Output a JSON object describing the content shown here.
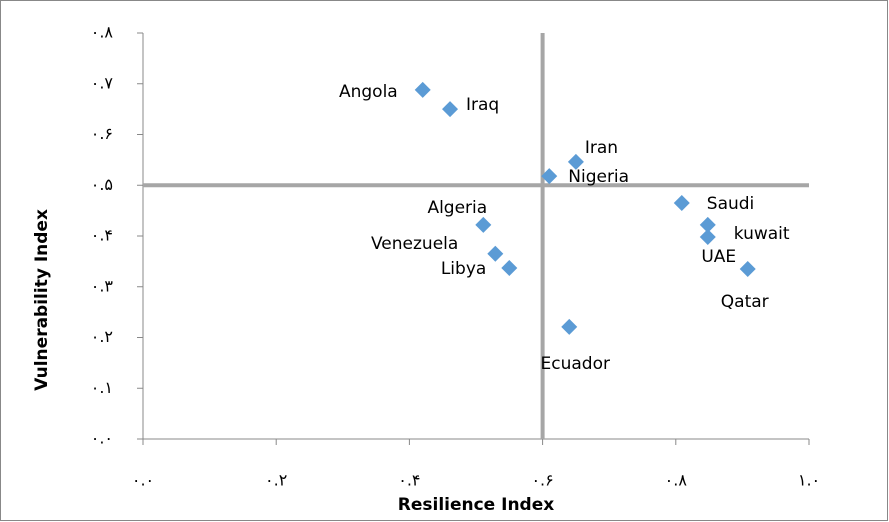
{
  "chart_data": {
    "type": "scatter",
    "x_label": "Resilience Index",
    "y_label": "Vulnerability Index",
    "points": [
      "Angola",
      "Iraq",
      "Iran",
      "Nigeria",
      "Saudi",
      "kuwait",
      "UAE",
      "Qatar",
      "Algeria",
      "Venezuela",
      "Libya",
      "Ecuador"
    ],
    "x": [
      0.42,
      0.461,
      0.65,
      0.61,
      0.809,
      0.848,
      0.848,
      0.908,
      0.511,
      0.529,
      0.55,
      0.64
    ],
    "values": [
      0.688,
      0.65,
      0.546,
      0.518,
      0.465,
      0.422,
      0.398,
      0.335,
      0.422,
      0.365,
      0.337,
      0.221
    ],
    "color": "#5b9bd5",
    "reference_lines": {
      "x": 0.6,
      "y": 0.5
    },
    "xlim": [
      0,
      1
    ],
    "xticks": [
      {
        "value": 0,
        "label": "۰.۰"
      },
      {
        "value": 0.2,
        "label": "۰.۲"
      },
      {
        "value": 0.4,
        "label": "۰.۴"
      },
      {
        "value": 0.6,
        "label": "۰.۶"
      },
      {
        "value": 0.8,
        "label": "۰.۸"
      },
      {
        "value": 1,
        "label": "۱.۰"
      }
    ],
    "ylim": [
      0,
      0.8
    ],
    "yticks": [
      {
        "value": 0,
        "label": "۰.۰"
      },
      {
        "value": 0.1,
        "label": "۰.۱"
      },
      {
        "value": 0.2,
        "label": "۰.۲"
      },
      {
        "value": 0.3,
        "label": "۰.۳"
      },
      {
        "value": 0.4,
        "label": "۰.۴"
      },
      {
        "value": 0.5,
        "label": "۰.۵"
      },
      {
        "value": 0.6,
        "label": "۰.۶"
      },
      {
        "value": 0.7,
        "label": "۰.۷"
      },
      {
        "value": 0.8,
        "label": "۰.۸"
      }
    ],
    "grid": false
  }
}
